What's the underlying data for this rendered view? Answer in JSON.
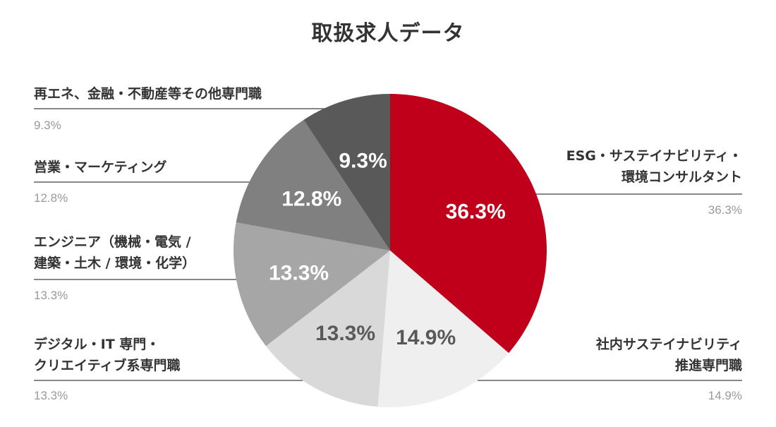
{
  "chart_data": {
    "type": "pie",
    "title": "取扱求人データ",
    "slices": [
      {
        "label_lines": [
          "ESG・サステイナビリティ・",
          "環境コンサルタント"
        ],
        "value": 36.3,
        "display": "36.3%",
        "color": "#c0001a",
        "text_color": "#ffffff"
      },
      {
        "label_lines": [
          "社内サステイナビリティ",
          "推進専門職"
        ],
        "value": 14.9,
        "display": "14.9%",
        "color": "#efefef",
        "text_color": "#595959"
      },
      {
        "label_lines": [
          "デジタル・IT 専門・",
          "クリエイティブ系専門職"
        ],
        "value": 13.3,
        "display": "13.3%",
        "color": "#d9d9d9",
        "text_color": "#595959"
      },
      {
        "label_lines": [
          "エンジニア（機械・電気 /",
          "建築・土木 / 環境・化学）"
        ],
        "value": 13.3,
        "display": "13.3%",
        "color": "#a6a6a6",
        "text_color": "#ffffff"
      },
      {
        "label_lines": [
          "営業・マーケティング"
        ],
        "value": 12.8,
        "display": "12.8%",
        "color": "#808080",
        "text_color": "#ffffff"
      },
      {
        "label_lines": [
          "再エネ、金融・不動産等その他専門職"
        ],
        "value": 9.3,
        "display": "9.3%",
        "color": "#595959",
        "text_color": "#ffffff"
      }
    ]
  }
}
